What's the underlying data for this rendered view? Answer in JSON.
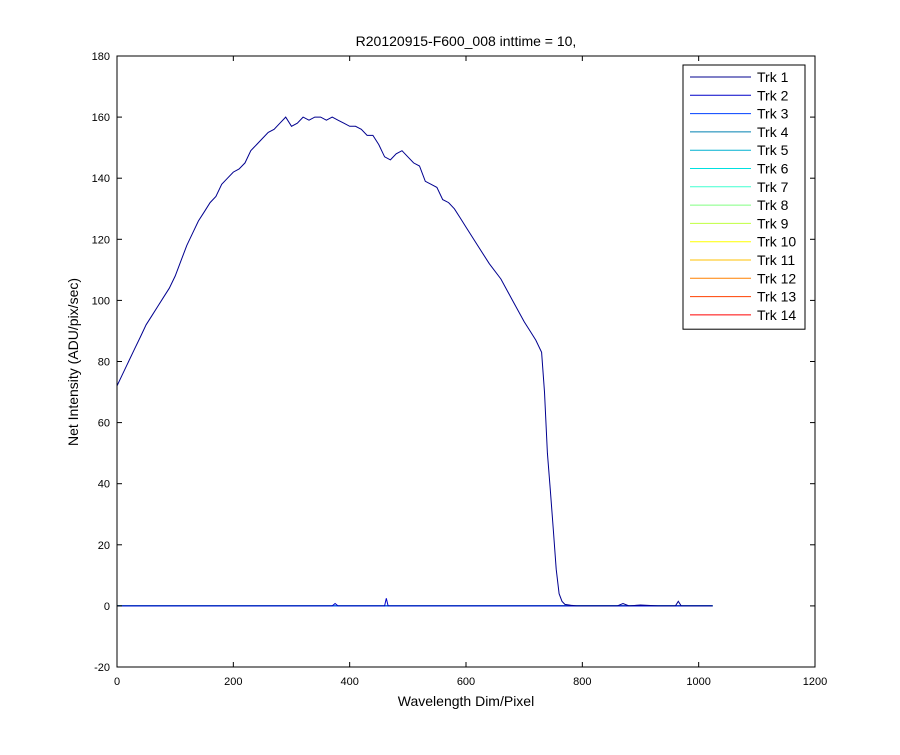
{
  "chart_data": {
    "type": "line",
    "title": "R20120915-F600_008 inttime = 10,",
    "xlabel": "Wavelength Dim/Pixel",
    "ylabel": "Net Intensity (ADU/pix/sec)",
    "xlim": [
      0,
      1200
    ],
    "ylim": [
      -20,
      180
    ],
    "xticks": [
      0,
      200,
      400,
      600,
      800,
      1000,
      1200
    ],
    "yticks": [
      -20,
      0,
      20,
      40,
      60,
      80,
      100,
      120,
      140,
      160,
      180
    ],
    "grid": false,
    "legend_position": "top-right",
    "series": [
      {
        "name": "Trk 1",
        "color": "#00008F",
        "x": [
          0,
          10,
          20,
          30,
          40,
          50,
          60,
          70,
          80,
          90,
          100,
          110,
          120,
          130,
          140,
          150,
          160,
          170,
          180,
          190,
          200,
          210,
          220,
          230,
          240,
          250,
          260,
          270,
          280,
          290,
          300,
          310,
          320,
          330,
          340,
          350,
          360,
          370,
          380,
          390,
          400,
          410,
          420,
          430,
          440,
          450,
          460,
          470,
          480,
          490,
          500,
          510,
          520,
          530,
          540,
          550,
          560,
          570,
          580,
          590,
          600,
          620,
          640,
          660,
          680,
          700,
          710,
          720,
          730,
          735,
          740,
          745,
          750,
          755,
          760,
          765,
          770,
          780,
          790,
          800,
          860,
          870,
          880,
          900,
          930,
          960,
          965,
          970,
          1000,
          1024
        ],
        "y": [
          72,
          76,
          80,
          84,
          88,
          92,
          95,
          98,
          101,
          104,
          108,
          113,
          118,
          122,
          126,
          129,
          132,
          134,
          138,
          140,
          142,
          143,
          145,
          149,
          151,
          153,
          155,
          156,
          158,
          160,
          157,
          158,
          160,
          159,
          160,
          160,
          159,
          160,
          159,
          158,
          157,
          157,
          156,
          154,
          154,
          151,
          147,
          146,
          148,
          149,
          147,
          145,
          144,
          139,
          138,
          137,
          133,
          132,
          130,
          127,
          124,
          118,
          112,
          107,
          100,
          93,
          90,
          87,
          83,
          70,
          50,
          38,
          25,
          12,
          4,
          1.5,
          0.5,
          0.2,
          0,
          0,
          0,
          0.8,
          0,
          0.3,
          0,
          0,
          1.5,
          0,
          0,
          0
        ]
      },
      {
        "name": "Trk 2",
        "color": "#0000C8",
        "x": [
          0,
          370,
          375,
          380,
          460,
          463,
          466,
          900,
          1024
        ],
        "y": [
          0,
          0,
          0.8,
          0,
          0,
          2.5,
          0,
          0,
          0
        ]
      },
      {
        "name": "Trk 3",
        "color": "#0040FF",
        "x": [
          0,
          1024
        ],
        "y": [
          0,
          0
        ]
      },
      {
        "name": "Trk 4",
        "color": "#0080B0",
        "x": [
          0,
          1024
        ],
        "y": [
          0,
          0
        ]
      },
      {
        "name": "Trk 5",
        "color": "#00B0D0",
        "x": [
          0,
          1024
        ],
        "y": [
          0,
          0
        ]
      },
      {
        "name": "Trk 6",
        "color": "#00E0E0",
        "x": [
          0,
          1024
        ],
        "y": [
          0,
          0
        ]
      },
      {
        "name": "Trk 7",
        "color": "#40FFD0",
        "x": [
          0,
          1024
        ],
        "y": [
          0,
          0
        ]
      },
      {
        "name": "Trk 8",
        "color": "#80FF80",
        "x": [
          0,
          1024
        ],
        "y": [
          0,
          0
        ]
      },
      {
        "name": "Trk 9",
        "color": "#C0FF40",
        "x": [
          0,
          1024
        ],
        "y": [
          0,
          0
        ]
      },
      {
        "name": "Trk 10",
        "color": "#FFFF00",
        "x": [
          0,
          1024
        ],
        "y": [
          0,
          0
        ]
      },
      {
        "name": "Trk 11",
        "color": "#FFC000",
        "x": [
          0,
          1024
        ],
        "y": [
          0,
          0
        ]
      },
      {
        "name": "Trk 12",
        "color": "#FF8000",
        "x": [
          0,
          1024
        ],
        "y": [
          0,
          0
        ]
      },
      {
        "name": "Trk 13",
        "color": "#FF4000",
        "x": [
          0,
          1024
        ],
        "y": [
          0,
          0
        ]
      },
      {
        "name": "Trk 14",
        "color": "#FF0000",
        "x": [
          0,
          1024
        ],
        "y": [
          0,
          0
        ]
      }
    ]
  }
}
